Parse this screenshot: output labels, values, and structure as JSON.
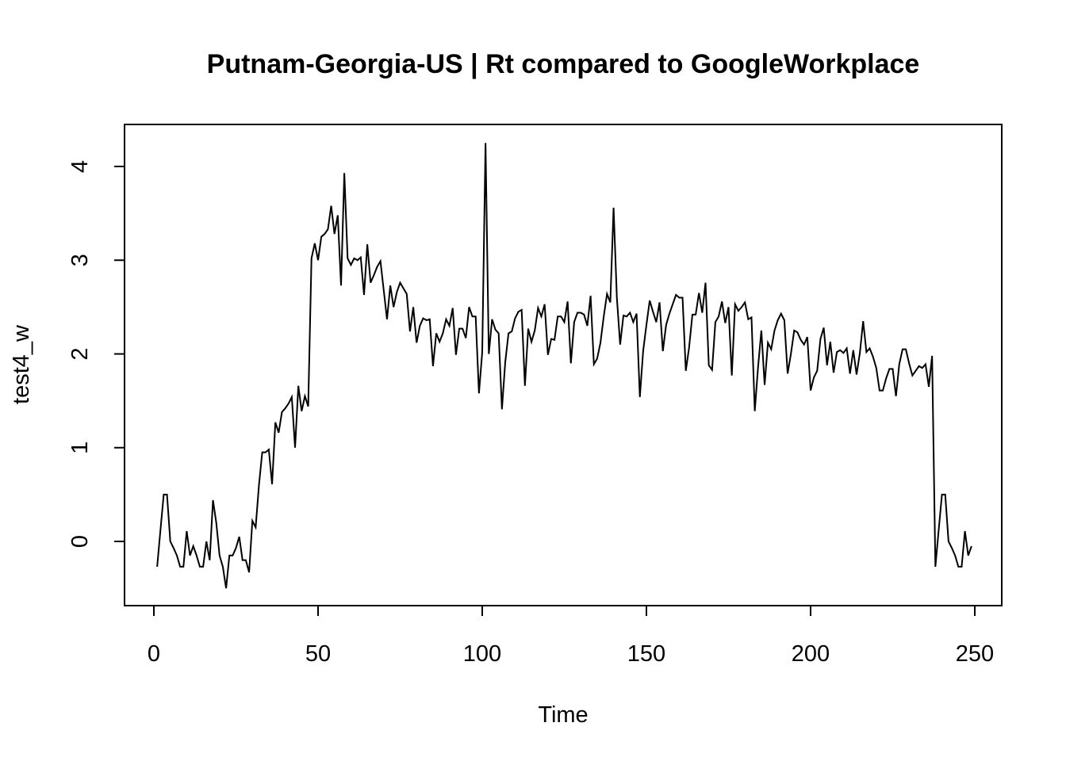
{
  "chart_data": {
    "type": "line",
    "title": "Putnam-Georgia-US | Rt compared to GoogleWorkplace",
    "xlabel": "Time",
    "ylabel": "test4_w",
    "xlim": [
      0,
      250
    ],
    "ylim": [
      -0.5,
      4.25
    ],
    "x_ticks": [
      0,
      50,
      100,
      150,
      200,
      250
    ],
    "y_ticks": [
      0,
      1,
      2,
      3,
      4
    ],
    "grid": false,
    "legend": "none",
    "series_color": "#000000",
    "x_start": 1,
    "series": [
      {
        "values": [
          -0.27,
          0.12,
          0.5,
          0.5,
          0.0,
          -0.07,
          -0.15,
          -0.27,
          -0.27,
          0.11,
          -0.15,
          -0.05,
          -0.15,
          -0.27,
          -0.27,
          0.0,
          -0.2,
          0.44,
          0.2,
          -0.15,
          -0.27,
          -0.5,
          -0.15,
          -0.15,
          -0.07,
          0.05,
          -0.2,
          -0.2,
          -0.33,
          0.22,
          0.15,
          0.6,
          0.95,
          0.95,
          0.98,
          0.61,
          1.27,
          1.16,
          1.38,
          1.42,
          1.47,
          1.54,
          1.0,
          1.66,
          1.39,
          1.55,
          1.44,
          3.02,
          3.18,
          3.0,
          3.25,
          3.28,
          3.33,
          3.58,
          3.28,
          3.48,
          2.73,
          3.93,
          3.02,
          2.95,
          3.02,
          3.0,
          3.03,
          2.63,
          3.17,
          2.76,
          2.84,
          2.93,
          2.99,
          2.68,
          2.37,
          2.73,
          2.5,
          2.66,
          2.76,
          2.7,
          2.64,
          2.24,
          2.5,
          2.12,
          2.3,
          2.38,
          2.36,
          2.37,
          1.87,
          2.22,
          2.13,
          2.22,
          2.37,
          2.3,
          2.49,
          1.99,
          2.27,
          2.27,
          2.17,
          2.5,
          2.4,
          2.4,
          1.58,
          2.02,
          4.25,
          2.0,
          2.37,
          2.26,
          2.22,
          1.41,
          1.91,
          2.22,
          2.24,
          2.38,
          2.45,
          2.47,
          1.66,
          2.27,
          2.13,
          2.25,
          2.49,
          2.4,
          2.53,
          1.99,
          2.16,
          2.15,
          2.4,
          2.4,
          2.34,
          2.56,
          1.9,
          2.34,
          2.44,
          2.44,
          2.42,
          2.3,
          2.62,
          1.89,
          1.95,
          2.12,
          2.4,
          2.64,
          2.55,
          3.56,
          2.6,
          2.1,
          2.41,
          2.4,
          2.44,
          2.34,
          2.43,
          1.54,
          2.03,
          2.31,
          2.57,
          2.45,
          2.34,
          2.55,
          2.03,
          2.31,
          2.43,
          2.53,
          2.63,
          2.6,
          2.6,
          1.82,
          2.07,
          2.42,
          2.42,
          2.65,
          2.44,
          2.76,
          1.88,
          1.83,
          2.34,
          2.4,
          2.56,
          2.33,
          2.5,
          1.77,
          2.53,
          2.46,
          2.5,
          2.55,
          2.37,
          2.39,
          1.39,
          1.86,
          2.25,
          1.67,
          2.12,
          2.05,
          2.25,
          2.36,
          2.43,
          2.36,
          1.79,
          2.0,
          2.25,
          2.23,
          2.15,
          2.1,
          2.18,
          1.61,
          1.75,
          1.82,
          2.16,
          2.28,
          1.88,
          2.13,
          1.8,
          2.02,
          2.04,
          2.01,
          2.06,
          1.79,
          2.04,
          1.78,
          2.01,
          2.35,
          2.02,
          2.06,
          1.97,
          1.85,
          1.61,
          1.61,
          1.74,
          1.84,
          1.84,
          1.55,
          1.89,
          2.05,
          2.05,
          1.9,
          1.77,
          1.82,
          1.87,
          1.85,
          1.89,
          1.65,
          1.98,
          -0.27,
          0.12,
          0.5,
          0.5,
          0.0,
          -0.07,
          -0.15,
          -0.27,
          -0.27,
          0.11,
          -0.15,
          -0.05
        ]
      }
    ]
  }
}
